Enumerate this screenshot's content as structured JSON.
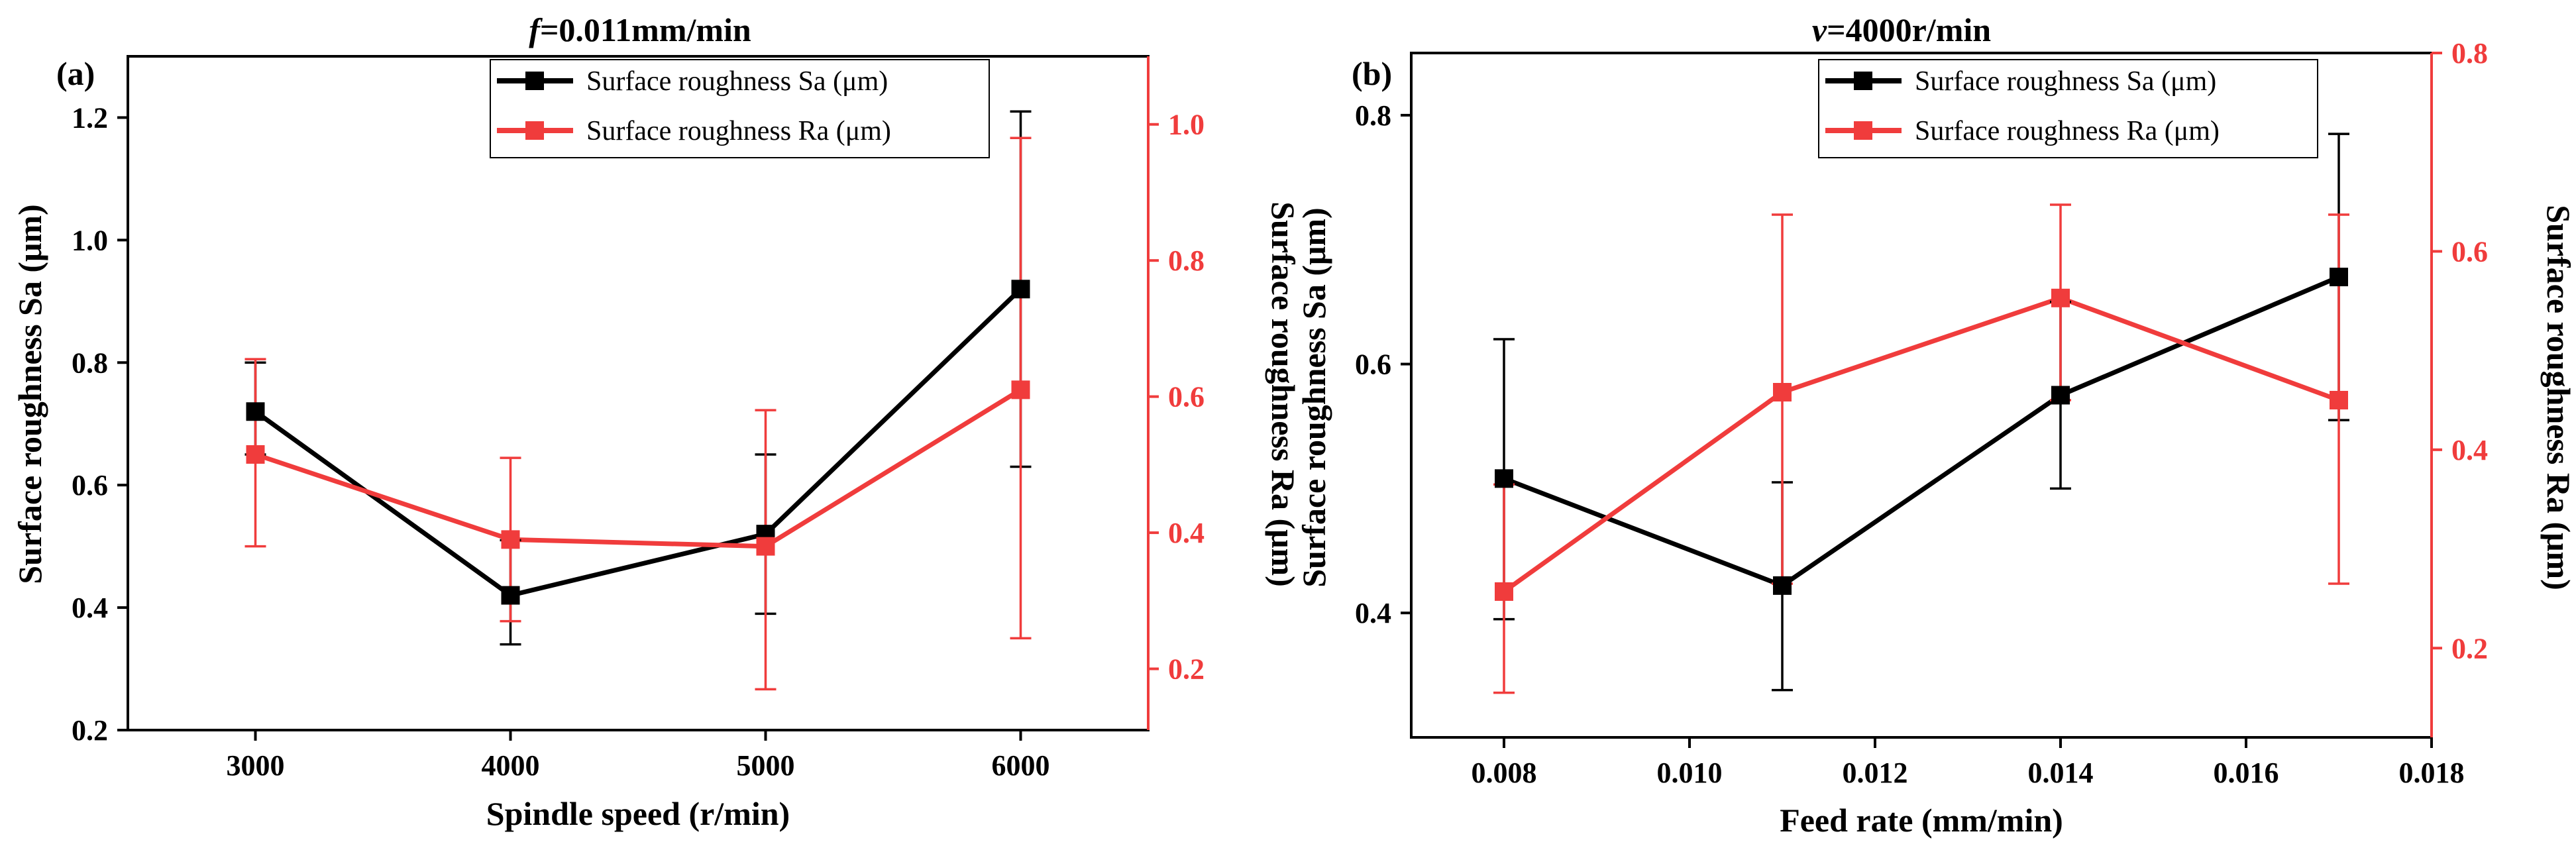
{
  "colors": {
    "sa": "#000000",
    "ra": "#f03c3c",
    "axis": "#000000"
  },
  "charts": [
    {
      "letter": "(a)",
      "title_var": "f",
      "title_rest": "=0.011mm/min",
      "xlabel": "Spindle speed (r/min)",
      "ylabel_left": "Surface roughness Sa (μm)",
      "ylabel_right": "Surface roughness Ra (μm)",
      "legend": [
        "Surface roughness Sa (μm)",
        "Surface roughness Ra (μm)"
      ],
      "x_tick_labels": [
        "3000",
        "4000",
        "5000",
        "6000"
      ],
      "y_left_tick_labels": [
        "0.2",
        "0.4",
        "0.6",
        "0.8",
        "1.0",
        "1.2"
      ],
      "y_right_tick_labels": [
        "0.2",
        "0.4",
        "0.6",
        "0.8",
        "1.0"
      ]
    },
    {
      "letter": "(b)",
      "title_var": "v",
      "title_rest": "=4000r/min",
      "xlabel": "Feed rate (mm/min)",
      "ylabel_left": "Surface roughness Sa (μm)",
      "ylabel_right": "Surface roughness Ra (μm)",
      "legend": [
        "Surface roughness Sa (μm)",
        "Surface roughness Ra (μm)"
      ],
      "x_tick_labels": [
        "0.008",
        "0.010",
        "0.012",
        "0.014",
        "0.016",
        "0.018"
      ],
      "y_left_tick_labels": [
        "0.4",
        "0.6",
        "0.8"
      ],
      "y_right_tick_labels": [
        "0.2",
        "0.4",
        "0.6",
        "0.8"
      ]
    }
  ],
  "chart_data": [
    {
      "type": "line",
      "x": [
        3000,
        4000,
        5000,
        6000
      ],
      "xlim": [
        2500,
        6500
      ],
      "x_ticks": [
        3000,
        4000,
        5000,
        6000
      ],
      "y_left_lim": [
        0.2,
        1.3
      ],
      "y_left_ticks": [
        0.2,
        0.4,
        0.6,
        0.8,
        1.0,
        1.2
      ],
      "y_right_lim": [
        0.11,
        1.1
      ],
      "y_right_ticks": [
        0.2,
        0.4,
        0.6,
        0.8,
        1.0
      ],
      "legend_position": "top-right",
      "series": [
        {
          "name": "Surface roughness Sa (μm)",
          "axis": "left",
          "values": [
            0.72,
            0.42,
            0.52,
            0.92
          ],
          "err_low": [
            0.65,
            0.34,
            0.39,
            0.63
          ],
          "err_high": [
            0.8,
            0.51,
            0.65,
            1.21
          ]
        },
        {
          "name": "Surface roughness Ra (μm)",
          "axis": "right",
          "values": [
            0.515,
            0.39,
            0.38,
            0.61
          ],
          "err_low": [
            0.38,
            0.27,
            0.17,
            0.245
          ],
          "err_high": [
            0.655,
            0.51,
            0.58,
            0.98
          ]
        }
      ]
    },
    {
      "type": "line",
      "x": [
        0.008,
        0.011,
        0.014,
        0.017
      ],
      "xlim": [
        0.007,
        0.018
      ],
      "x_ticks": [
        0.008,
        0.01,
        0.012,
        0.014,
        0.016,
        0.018
      ],
      "y_left_lim": [
        0.3,
        0.85
      ],
      "y_left_ticks": [
        0.4,
        0.6,
        0.8
      ],
      "y_right_lim": [
        0.11,
        0.8
      ],
      "y_right_ticks": [
        0.2,
        0.4,
        0.6,
        0.8
      ],
      "legend_position": "top-right",
      "series": [
        {
          "name": "Surface roughness Sa (μm)",
          "axis": "left",
          "values": [
            0.508,
            0.422,
            0.575,
            0.67
          ],
          "err_low": [
            0.395,
            0.338,
            0.5,
            0.555
          ],
          "err_high": [
            0.62,
            0.505,
            0.65,
            0.785
          ]
        },
        {
          "name": "Surface roughness Ra (μm)",
          "axis": "right",
          "values": [
            0.257,
            0.458,
            0.553,
            0.45
          ],
          "err_low": [
            0.155,
            0.265,
            0.45,
            0.265
          ],
          "err_high": [
            0.365,
            0.637,
            0.647,
            0.637
          ]
        }
      ]
    }
  ]
}
